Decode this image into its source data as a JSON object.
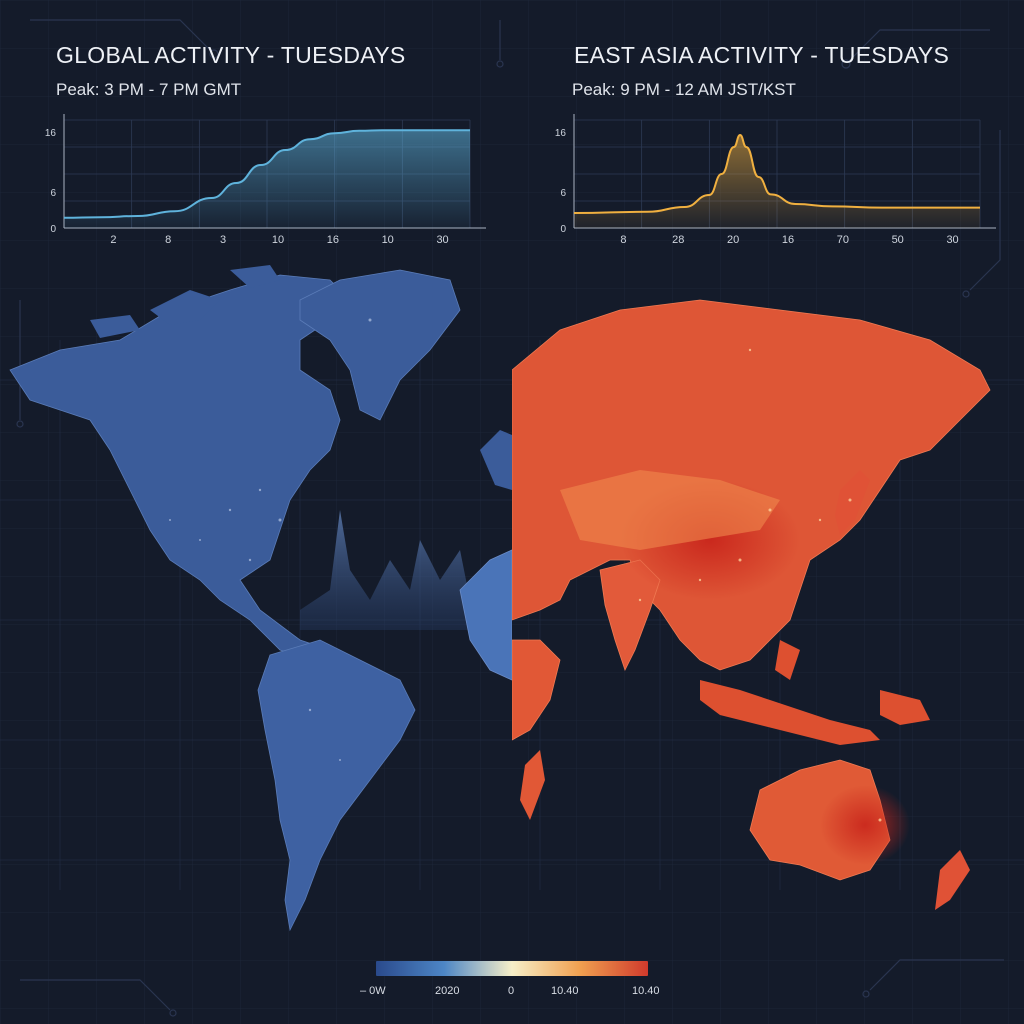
{
  "left_panel": {
    "title": "GLOBAL ACTIVITY - TUESDAYS",
    "subtitle": "Peak: 3 PM - 7 PM GMT"
  },
  "right_panel": {
    "title": "EAST ASIA ACTIVITY - TUESDAYS",
    "subtitle": "Peak: 9 PM - 12 AM JST/KST"
  },
  "chart_data": [
    {
      "type": "area",
      "title": "GLOBAL ACTIVITY - TUESDAYS",
      "categories": [
        "2",
        "8",
        "3",
        "10",
        "16",
        "10",
        "30"
      ],
      "ytick_labels": [
        "0",
        "6",
        "16"
      ],
      "ytick_values": [
        0,
        6,
        16
      ],
      "ylim": [
        0,
        18
      ],
      "xlim": [
        0,
        33
      ],
      "x": [
        0,
        3,
        6,
        9,
        12,
        14,
        16,
        18,
        20,
        22,
        24,
        26,
        28,
        30,
        33
      ],
      "values": [
        1.7,
        1.8,
        2.0,
        2.8,
        5.0,
        7.5,
        10.5,
        13.0,
        14.8,
        15.8,
        16.2,
        16.3,
        16.3,
        16.3,
        16.3
      ],
      "color": "#5fb3dc"
    },
    {
      "type": "area",
      "title": "EAST ASIA ACTIVITY - TUESDAYS",
      "categories": [
        "8",
        "28",
        "20",
        "16",
        "70",
        "50",
        "30"
      ],
      "ytick_labels": [
        "0",
        "6",
        "16"
      ],
      "ytick_values": [
        0,
        6,
        16
      ],
      "ylim": [
        0,
        18
      ],
      "xlim": [
        0,
        33
      ],
      "x": [
        0,
        6,
        9,
        11,
        12,
        13,
        13.5,
        14,
        15,
        16,
        18,
        21,
        25,
        29,
        33
      ],
      "values": [
        2.5,
        2.7,
        3.5,
        5.5,
        9.0,
        13.5,
        15.5,
        13.5,
        8.5,
        5.6,
        4.0,
        3.6,
        3.4,
        3.4,
        3.4
      ],
      "color": "#f0b040"
    }
  ],
  "legend": {
    "labels": [
      "– 0W",
      "2020",
      "0",
      "10.40",
      "10.40"
    ],
    "stops": [
      "#2a4a8c",
      "#4d86c6",
      "#f6efc8",
      "#f0a050",
      "#d03a2c"
    ]
  },
  "colors": {
    "background": "#141b2a",
    "global_map": "#3c5f9e",
    "asia_map": "#e0583a"
  }
}
